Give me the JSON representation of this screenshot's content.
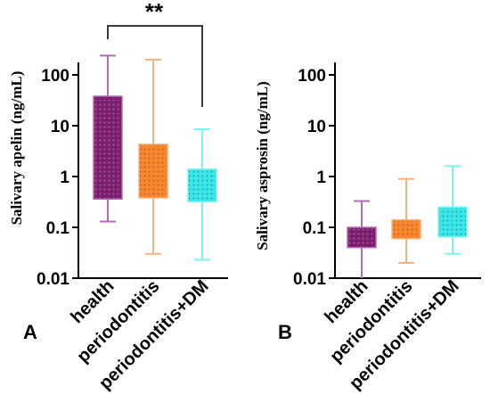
{
  "chart_data": [
    {
      "type": "box",
      "panel_label": "A",
      "ylabel": "Salivary apelin (ng/mL)",
      "yscale": "log",
      "ylim": [
        0.01,
        400
      ],
      "yticks": [
        "100",
        "10",
        "1",
        "0.1",
        "0.01"
      ],
      "categories": [
        "health",
        "periodontitis",
        "periodontitis+DM"
      ],
      "boxes": [
        {
          "name": "health",
          "min": 0.13,
          "q1": 0.36,
          "q3": 38,
          "max": 240,
          "color": "#7b1e6e",
          "whisker_color": "#b56bb5"
        },
        {
          "name": "periodontitis",
          "min": 0.03,
          "q1": 0.38,
          "q3": 4.3,
          "max": 200,
          "color": "#f7872e",
          "whisker_color": "#f7b27a"
        },
        {
          "name": "periodontitis+DM",
          "min": 0.023,
          "q1": 0.32,
          "q3": 1.4,
          "max": 8.5,
          "color": "#3ae6e6",
          "whisker_color": "#7ef2f2"
        }
      ],
      "significance": {
        "from": "health",
        "to": "periodontitis+DM",
        "label": "**"
      }
    },
    {
      "type": "box",
      "panel_label": "B",
      "ylabel": "Salivary asprosin (ng/mL)",
      "yscale": "log",
      "ylim": [
        0.01,
        400
      ],
      "yticks": [
        "100",
        "10",
        "1",
        "0.1",
        "0.01"
      ],
      "categories": [
        "health",
        "periodontitis",
        "periodontitis+DM"
      ],
      "boxes": [
        {
          "name": "health",
          "min": 0.01,
          "q1": 0.04,
          "q3": 0.1,
          "max": 0.33,
          "color": "#7b1e6e",
          "whisker_color": "#b56bb5"
        },
        {
          "name": "periodontitis",
          "min": 0.02,
          "q1": 0.06,
          "q3": 0.14,
          "max": 0.9,
          "color": "#f7872e",
          "whisker_color": "#f7b27a"
        },
        {
          "name": "periodontitis+DM",
          "min": 0.03,
          "q1": 0.065,
          "q3": 0.25,
          "max": 1.6,
          "color": "#3ae6e6",
          "whisker_color": "#7ef2f2"
        }
      ]
    }
  ]
}
